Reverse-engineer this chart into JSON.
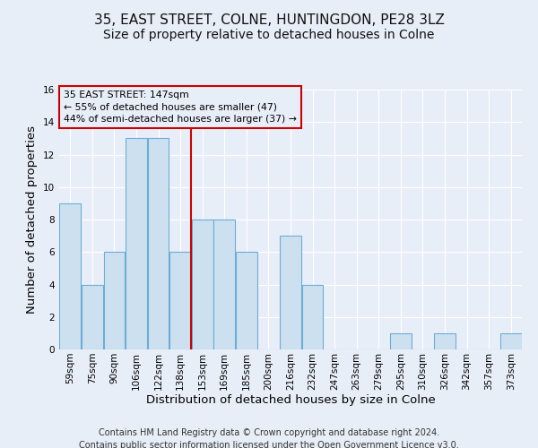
{
  "title": "35, EAST STREET, COLNE, HUNTINGDON, PE28 3LZ",
  "subtitle": "Size of property relative to detached houses in Colne",
  "xlabel": "Distribution of detached houses by size in Colne",
  "ylabel": "Number of detached properties",
  "bin_labels": [
    "59sqm",
    "75sqm",
    "90sqm",
    "106sqm",
    "122sqm",
    "138sqm",
    "153sqm",
    "169sqm",
    "185sqm",
    "200sqm",
    "216sqm",
    "232sqm",
    "247sqm",
    "263sqm",
    "279sqm",
    "295sqm",
    "310sqm",
    "326sqm",
    "342sqm",
    "357sqm",
    "373sqm"
  ],
  "bar_values": [
    9,
    4,
    6,
    13,
    13,
    6,
    8,
    8,
    6,
    0,
    7,
    4,
    0,
    0,
    0,
    1,
    0,
    1,
    0,
    0,
    1
  ],
  "bar_color": "#cde0f0",
  "bar_edgecolor": "#6aaed6",
  "ref_line_label": "35 EAST STREET: 147sqm",
  "annotation_line1": "← 55% of detached houses are smaller (47)",
  "annotation_line2": "44% of semi-detached houses are larger (37) →",
  "annotation_box_edgecolor": "#cc0000",
  "ref_line_color": "#cc0000",
  "ylim": [
    0,
    16
  ],
  "yticks": [
    0,
    2,
    4,
    6,
    8,
    10,
    12,
    14,
    16
  ],
  "footer1": "Contains HM Land Registry data © Crown copyright and database right 2024.",
  "footer2": "Contains public sector information licensed under the Open Government Licence v3.0.",
  "bg_color": "#e8eef8",
  "grid_color": "#ffffff",
  "title_fontsize": 11,
  "subtitle_fontsize": 10,
  "axis_label_fontsize": 9.5,
  "tick_fontsize": 7.5,
  "footer_fontsize": 7
}
